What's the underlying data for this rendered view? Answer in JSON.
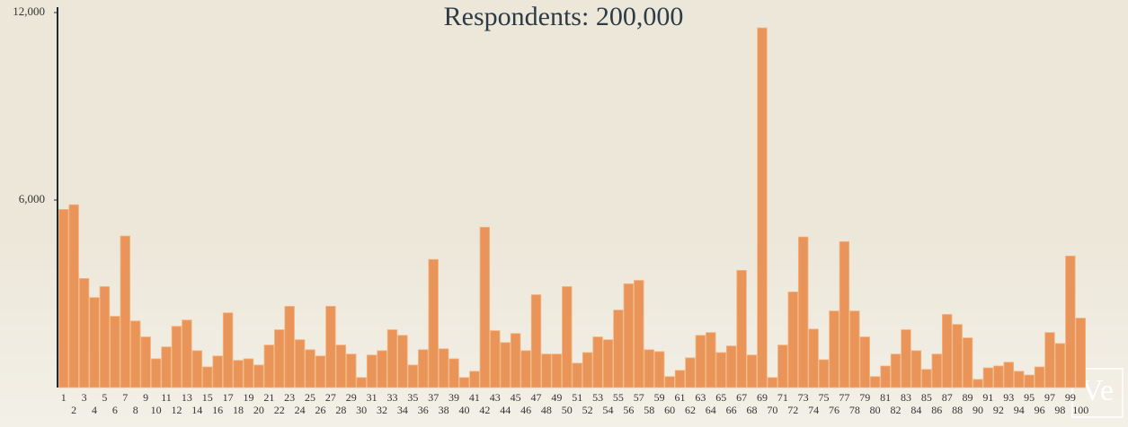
{
  "chart_data": {
    "type": "bar",
    "title": "Respondents: 200,000",
    "watermark": "Ve",
    "categories": [
      "1",
      "2",
      "3",
      "4",
      "5",
      "6",
      "7",
      "8",
      "9",
      "10",
      "11",
      "12",
      "13",
      "14",
      "15",
      "16",
      "17",
      "18",
      "19",
      "20",
      "21",
      "22",
      "23",
      "24",
      "25",
      "26",
      "27",
      "28",
      "29",
      "30",
      "31",
      "32",
      "33",
      "34",
      "35",
      "36",
      "37",
      "38",
      "39",
      "40",
      "41",
      "42",
      "43",
      "44",
      "45",
      "46",
      "47",
      "48",
      "49",
      "50",
      "51",
      "52",
      "53",
      "54",
      "55",
      "56",
      "57",
      "58",
      "59",
      "60",
      "61",
      "62",
      "63",
      "64",
      "65",
      "66",
      "67",
      "68",
      "69",
      "70",
      "71",
      "72",
      "73",
      "74",
      "75",
      "76",
      "77",
      "78",
      "79",
      "80",
      "81",
      "82",
      "83",
      "84",
      "85",
      "86",
      "87",
      "88",
      "89",
      "90",
      "91",
      "92",
      "93",
      "94",
      "95",
      "96",
      "97",
      "98",
      "99",
      "100"
    ],
    "values": [
      5700,
      5850,
      3490,
      2880,
      3230,
      2280,
      4850,
      2130,
      1620,
      920,
      1300,
      1960,
      2160,
      1180,
      660,
      1010,
      2390,
      870,
      920,
      720,
      1360,
      1850,
      2600,
      1530,
      1210,
      1010,
      2600,
      1360,
      1070,
      320,
      1040,
      1180,
      1850,
      1670,
      720,
      1210,
      4100,
      1240,
      920,
      320,
      520,
      5130,
      1820,
      1440,
      1730,
      1180,
      2970,
      1070,
      1070,
      3230,
      780,
      1120,
      1620,
      1530,
      2480,
      3320,
      3430,
      1210,
      1150,
      350,
      550,
      950,
      1670,
      1760,
      1120,
      1330,
      3750,
      1040,
      11510,
      320,
      1360,
      3060,
      4820,
      1870,
      890,
      2450,
      4670,
      2450,
      1620,
      350,
      690,
      1070,
      1850,
      1180,
      580,
      1070,
      2340,
      2020,
      1590,
      260,
      630,
      690,
      810,
      520,
      400,
      660,
      1760,
      1410,
      4210,
      2220
    ],
    "color": "#e9955a",
    "ylim": [
      0,
      12000
    ],
    "yticks": [
      {
        "value": 6000,
        "label": "6,000"
      },
      {
        "value": 12000,
        "label": "12,000"
      }
    ]
  }
}
